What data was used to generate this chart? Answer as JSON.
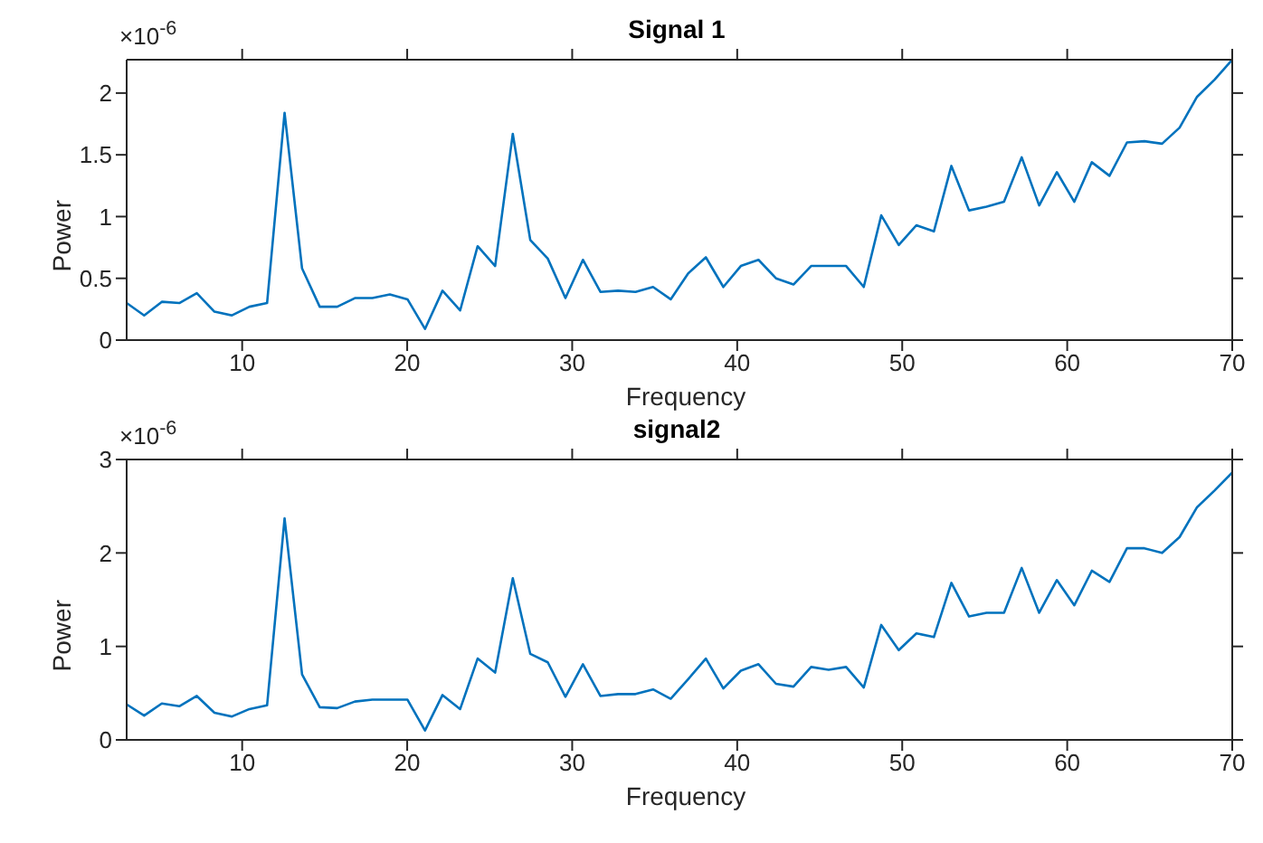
{
  "chart_data": [
    {
      "type": "line",
      "title": "Signal 1",
      "xlabel": "Frequency",
      "ylabel": "Power",
      "annotations": [
        "×10$^{-6}$"
      ],
      "xlim": [
        3,
        70
      ],
      "xticks": [
        10,
        20,
        30,
        40,
        50,
        60,
        70
      ],
      "ylim": [
        0,
        2.27
      ],
      "yticks": [
        0,
        0.5,
        1,
        1.5,
        2
      ],
      "x": [
        3.0,
        4.06,
        5.13,
        6.19,
        7.25,
        8.32,
        9.38,
        10.44,
        11.51,
        12.57,
        13.63,
        14.7,
        15.76,
        16.83,
        17.89,
        18.95,
        20.02,
        21.08,
        22.14,
        23.21,
        24.27,
        25.33,
        26.4,
        27.46,
        28.52,
        29.59,
        30.65,
        31.71,
        32.78,
        33.84,
        34.9,
        35.97,
        37.03,
        38.1,
        39.16,
        40.22,
        41.29,
        42.35,
        43.41,
        44.48,
        45.54,
        46.6,
        47.67,
        48.73,
        49.79,
        50.86,
        51.92,
        52.98,
        54.05,
        55.11,
        56.17,
        57.24,
        58.3,
        59.37,
        60.43,
        61.49,
        62.56,
        63.62,
        64.68,
        65.75,
        66.81,
        67.87,
        68.94,
        70.0
      ],
      "series": [
        {
          "color": "#0072bd",
          "values": [
            0.3,
            0.2,
            0.31,
            0.3,
            0.38,
            0.23,
            0.2,
            0.27,
            0.3,
            1.84,
            0.58,
            0.27,
            0.27,
            0.34,
            0.34,
            0.37,
            0.33,
            0.09,
            0.4,
            0.24,
            0.76,
            0.6,
            1.67,
            0.81,
            0.66,
            0.34,
            0.65,
            0.39,
            0.4,
            0.39,
            0.43,
            0.33,
            0.54,
            0.67,
            0.43,
            0.6,
            0.65,
            0.5,
            0.45,
            0.6,
            0.6,
            0.6,
            0.43,
            1.01,
            0.77,
            0.93,
            0.88,
            1.41,
            1.05,
            1.08,
            1.12,
            1.48,
            1.09,
            1.36,
            1.12,
            1.44,
            1.33,
            1.6,
            1.61,
            1.59,
            1.72,
            1.97,
            2.11,
            2.27
          ]
        }
      ]
    },
    {
      "type": "line",
      "title": "signal2",
      "xlabel": "Frequency",
      "ylabel": "Power",
      "annotations": [
        "×10$^{-6}$"
      ],
      "xlim": [
        3,
        70
      ],
      "xticks": [
        10,
        20,
        30,
        40,
        50,
        60,
        70
      ],
      "ylim": [
        0,
        3
      ],
      "yticks": [
        0,
        1,
        2,
        3
      ],
      "x": [
        3.0,
        4.06,
        5.13,
        6.19,
        7.25,
        8.32,
        9.38,
        10.44,
        11.51,
        12.57,
        13.63,
        14.7,
        15.76,
        16.83,
        17.89,
        18.95,
        20.02,
        21.08,
        22.14,
        23.21,
        24.27,
        25.33,
        26.4,
        27.46,
        28.52,
        29.59,
        30.65,
        31.71,
        32.78,
        33.84,
        34.9,
        35.97,
        37.03,
        38.1,
        39.16,
        40.22,
        41.29,
        42.35,
        43.41,
        44.48,
        45.54,
        46.6,
        47.67,
        48.73,
        49.79,
        50.86,
        51.92,
        52.98,
        54.05,
        55.11,
        56.17,
        57.24,
        58.3,
        59.37,
        60.43,
        61.49,
        62.56,
        63.62,
        64.68,
        65.75,
        66.81,
        67.87,
        68.94,
        70.0
      ],
      "series": [
        {
          "color": "#0072bd",
          "values": [
            0.38,
            0.26,
            0.39,
            0.36,
            0.47,
            0.29,
            0.25,
            0.33,
            0.37,
            2.37,
            0.7,
            0.35,
            0.34,
            0.41,
            0.43,
            0.43,
            0.43,
            0.1,
            0.48,
            0.33,
            0.87,
            0.72,
            1.73,
            0.92,
            0.83,
            0.46,
            0.81,
            0.47,
            0.49,
            0.49,
            0.54,
            0.44,
            0.65,
            0.87,
            0.55,
            0.74,
            0.81,
            0.6,
            0.57,
            0.78,
            0.75,
            0.78,
            0.56,
            1.23,
            0.96,
            1.14,
            1.1,
            1.68,
            1.32,
            1.36,
            1.36,
            1.84,
            1.36,
            1.71,
            1.44,
            1.81,
            1.69,
            2.05,
            2.05,
            2.0,
            2.17,
            2.49,
            2.67,
            2.86
          ]
        }
      ]
    }
  ]
}
